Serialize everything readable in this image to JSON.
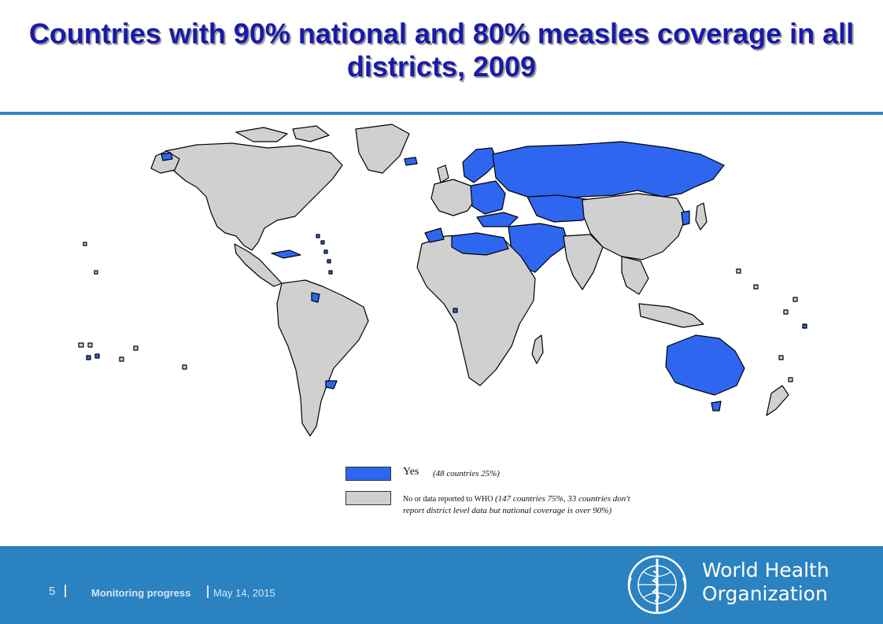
{
  "title": "Countries with 90% national and 80% measles coverage in all districts, 2009",
  "colors": {
    "yes": "#2e66f0",
    "no": "#d0d0d0",
    "title": "#1a1aa8",
    "accent": "#2f88c8",
    "footer": "#2b82c0"
  },
  "map": {
    "highlighted_regions": [
      "Russia",
      "Kazakhstan",
      "Central Asia",
      "Turkey",
      "Middle East",
      "North Africa",
      "Eastern Europe",
      "Scandinavia",
      "Iceland",
      "Greenland east coast",
      "Australia",
      "Korea",
      "Cuba",
      "Guyana",
      "Uruguay",
      "Caribbean islands",
      "Pacific islands"
    ]
  },
  "legend": {
    "yes_label": "Yes",
    "yes_note": "(48 countries 25%)",
    "no_label": "No or data reported to WHO",
    "no_note": "(147 countries 75%, 33 countries don't report district level data but national coverage is over 90%)"
  },
  "footer": {
    "page": "5",
    "section": "Monitoring progress",
    "date": "May 14, 2015",
    "org_line1": "World Health",
    "org_line2": "Organization",
    "emblem_icon": "who-emblem-icon"
  }
}
